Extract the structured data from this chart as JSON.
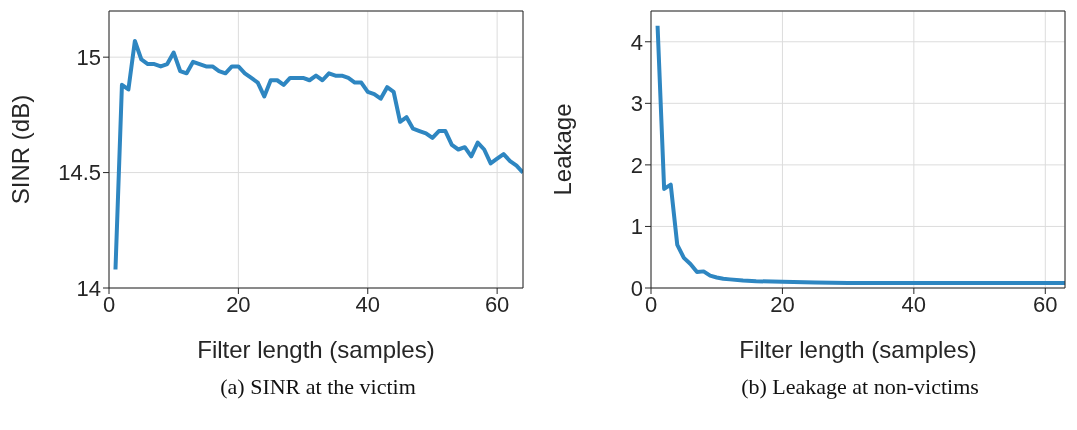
{
  "chart_data": [
    {
      "type": "line",
      "xlabel": "Filter length (samples)",
      "ylabel": "SINR (dB)",
      "annotations": [
        "(a) SINR at the victim"
      ],
      "grid": true,
      "xlim": [
        0,
        64
      ],
      "xticks": [
        0,
        20,
        40,
        60
      ],
      "ylim": [
        14,
        15.2
      ],
      "yticks": [
        14,
        14.5,
        15
      ],
      "marker": "none",
      "line_style": "solid",
      "x": [
        1,
        2,
        3,
        4,
        5,
        6,
        7,
        8,
        9,
        10,
        11,
        12,
        13,
        14,
        15,
        16,
        17,
        18,
        19,
        20,
        21,
        22,
        23,
        24,
        25,
        26,
        27,
        28,
        29,
        30,
        31,
        32,
        33,
        34,
        35,
        36,
        37,
        38,
        39,
        40,
        41,
        42,
        43,
        44,
        45,
        46,
        47,
        48,
        49,
        50,
        51,
        52,
        53,
        54,
        55,
        56,
        57,
        58,
        59,
        60,
        61,
        62,
        63,
        64
      ],
      "series": [
        {
          "color": "#2e86c1",
          "values": [
            14.08,
            14.88,
            14.86,
            15.07,
            14.99,
            14.97,
            14.97,
            14.96,
            14.97,
            15.02,
            14.94,
            14.93,
            14.98,
            14.97,
            14.96,
            14.96,
            14.94,
            14.93,
            14.96,
            14.96,
            14.93,
            14.91,
            14.89,
            14.83,
            14.9,
            14.9,
            14.88,
            14.91,
            14.91,
            14.91,
            14.9,
            14.92,
            14.9,
            14.93,
            14.92,
            14.92,
            14.91,
            14.89,
            14.89,
            14.85,
            14.84,
            14.82,
            14.87,
            14.85,
            14.72,
            14.74,
            14.69,
            14.68,
            14.67,
            14.65,
            14.68,
            14.68,
            14.62,
            14.6,
            14.61,
            14.57,
            14.63,
            14.6,
            14.54,
            14.56,
            14.58,
            14.55,
            14.53,
            14.5
          ]
        }
      ]
    },
    {
      "type": "line",
      "xlabel": "Filter length (samples)",
      "ylabel": "Leakage",
      "annotations": [
        "(b) Leakage at non-victims"
      ],
      "grid": true,
      "xlim": [
        0,
        63
      ],
      "xticks": [
        0,
        20,
        40,
        60
      ],
      "ylim": [
        0,
        4.5
      ],
      "yticks": [
        0,
        1,
        2,
        3,
        4
      ],
      "marker": "none",
      "line_style": "solid",
      "x": [
        1,
        2,
        3,
        4,
        5,
        6,
        7,
        8,
        9,
        10,
        11,
        12,
        14,
        16,
        20,
        25,
        30,
        40,
        50,
        63
      ],
      "series": [
        {
          "color": "#2e86c1",
          "values": [
            4.26,
            1.61,
            1.68,
            0.7,
            0.49,
            0.39,
            0.26,
            0.27,
            0.2,
            0.17,
            0.15,
            0.14,
            0.12,
            0.11,
            0.1,
            0.09,
            0.08,
            0.08,
            0.08,
            0.08
          ]
        }
      ]
    }
  ]
}
